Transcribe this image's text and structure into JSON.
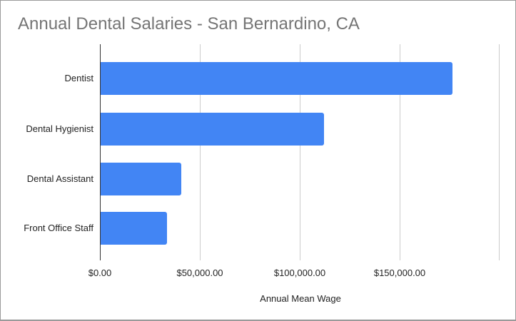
{
  "chart_data": {
    "type": "bar",
    "orientation": "horizontal",
    "title": "Annual Dental Salaries - San Bernardino, CA",
    "xlabel": "Annual Mean Wage",
    "ylabel": "",
    "categories": [
      "Dentist",
      "Dental Hygienist",
      "Dental Assistant",
      "Front Office Staff"
    ],
    "values": [
      176400,
      112100,
      40300,
      33200
    ],
    "xlim": [
      0,
      200000
    ],
    "xticks": [
      "$0.00",
      "$50,000.00",
      "$100,000.00",
      "$150,000.00"
    ],
    "grid": true,
    "legend": "none",
    "bar_color": "#4285f4"
  },
  "title": "Annual Dental Salaries - San Bernardino, CA",
  "xlabel": "Annual Mean Wage",
  "categories": [
    "Dentist",
    "Dental Hygienist",
    "Dental Assistant",
    "Front Office Staff"
  ],
  "ticks": [
    "$0.00",
    "$50,000.00",
    "$100,000.00",
    "$150,000.00"
  ]
}
